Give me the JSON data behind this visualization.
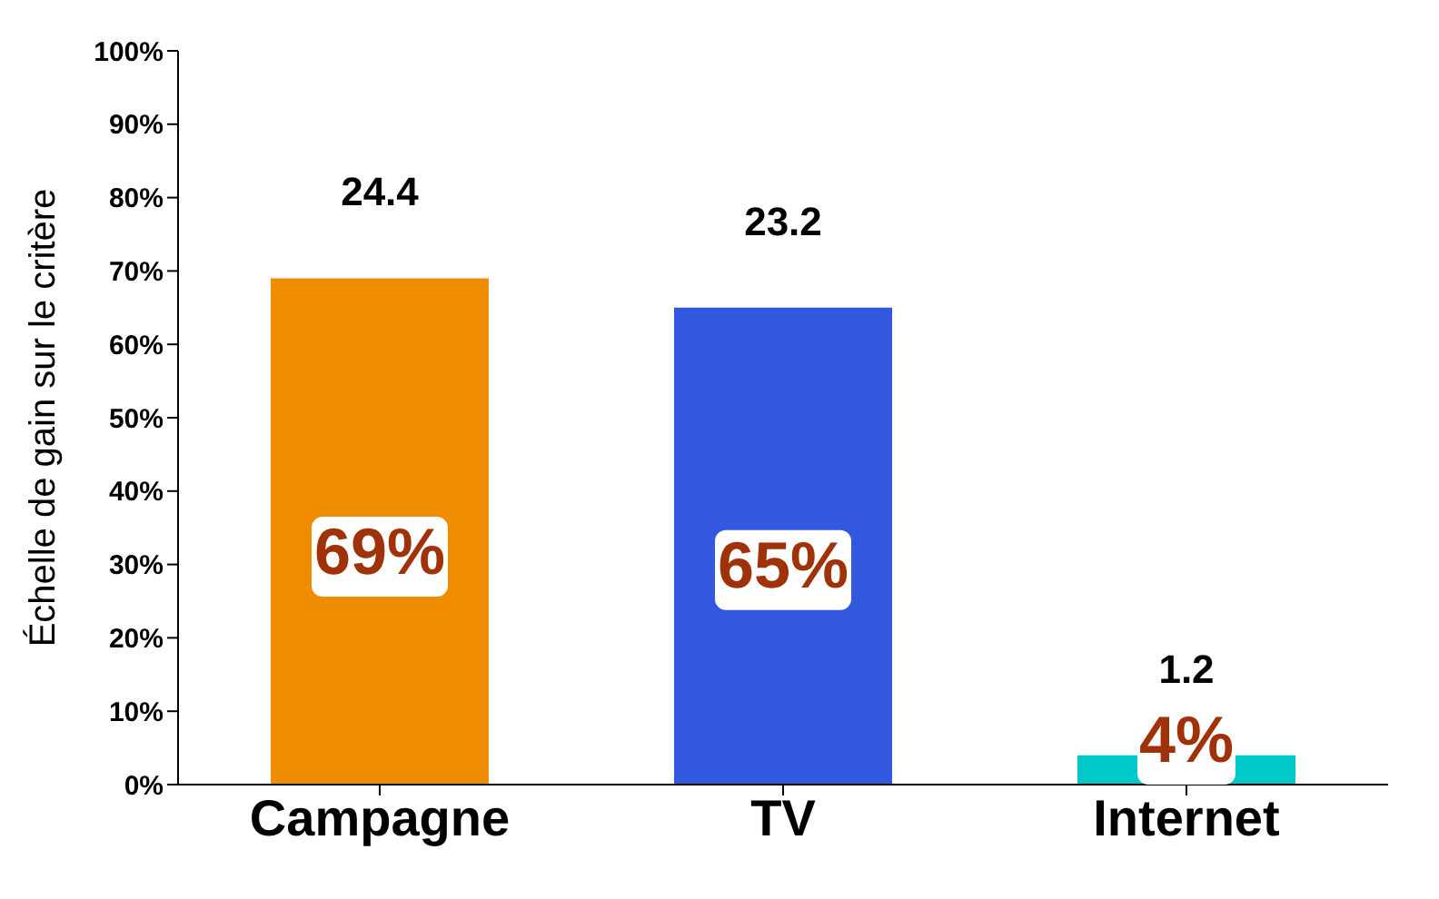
{
  "chart_data": {
    "type": "bar",
    "ylabel": "Échelle de gain sur le critère",
    "categories": [
      "Campagne",
      "TV",
      "Internet"
    ],
    "values": [
      69,
      65,
      4
    ],
    "colors": [
      "#f08c00",
      "#3358e0",
      "#00c8c8"
    ],
    "value_labels": [
      "69%",
      "65%",
      "4%"
    ],
    "annotations": [
      {
        "text": "24.4",
        "x": "Campagne",
        "y": 69
      },
      {
        "text": "23.2",
        "x": "TV",
        "y": 65
      },
      {
        "text": "1.2",
        "x": "Internet",
        "y": 4
      }
    ],
    "ylim": [
      0,
      100
    ],
    "yticks": [
      {
        "value": 0,
        "label": "0%"
      },
      {
        "value": 10,
        "label": "10%"
      },
      {
        "value": 20,
        "label": "20%"
      },
      {
        "value": 30,
        "label": "30%"
      },
      {
        "value": 40,
        "label": "40%"
      },
      {
        "value": 50,
        "label": "50%"
      },
      {
        "value": 60,
        "label": "60%"
      },
      {
        "value": 70,
        "label": "70%"
      },
      {
        "value": 80,
        "label": "80%"
      },
      {
        "value": 90,
        "label": "90%"
      },
      {
        "value": 100,
        "label": "100%"
      }
    ],
    "grid": false,
    "legend": false
  }
}
